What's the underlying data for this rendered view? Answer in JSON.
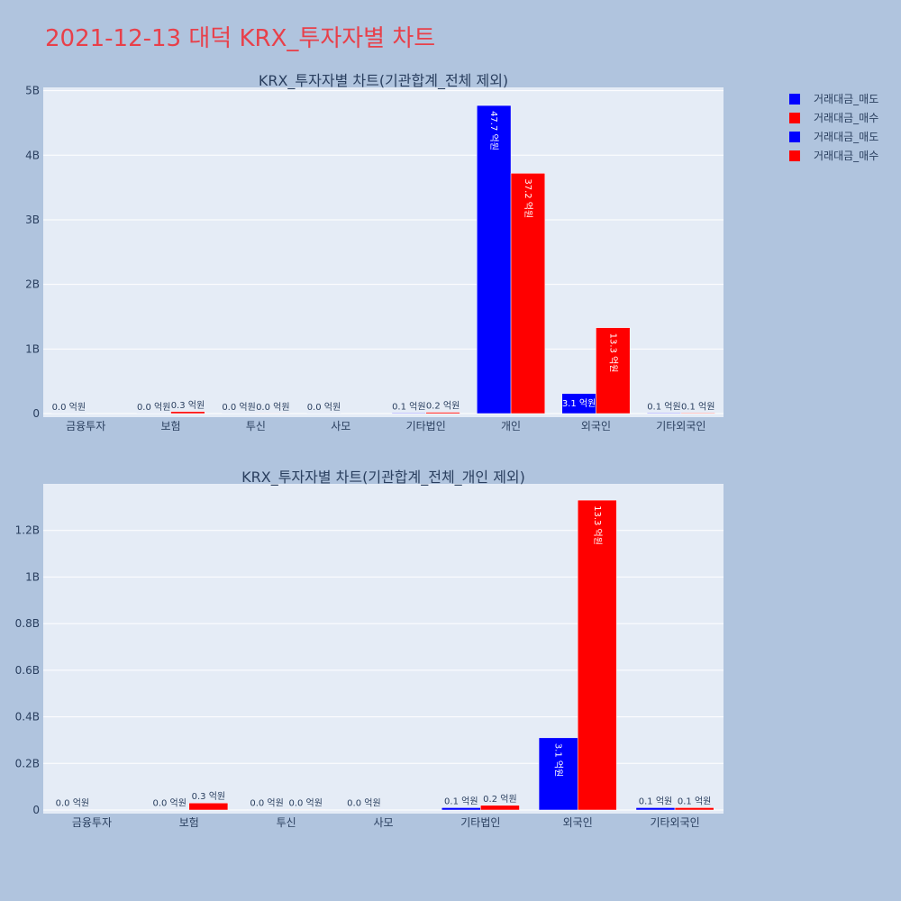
{
  "page": {
    "title": "2021-12-13 대덕 KRX_투자자별 차트"
  },
  "colors": {
    "sell": "#0000ff",
    "buy": "#ff0000",
    "title": "#e8404a",
    "background": "#b0c4de",
    "plot_background": "#e5ecf6"
  },
  "legend": {
    "placement": "top-right",
    "items": [
      {
        "name": "거래대금_매도",
        "color": "#0000ff"
      },
      {
        "name": "거래대금_매수",
        "color": "#ff0000"
      },
      {
        "name": "거래대금_매도",
        "color": "#0000ff"
      },
      {
        "name": "거래대금_매수",
        "color": "#ff0000"
      }
    ]
  },
  "chart_data": [
    {
      "type": "bar",
      "title": "KRX_투자자별 차트(기관합계_전체 제외)",
      "categories": [
        "금융투자",
        "보험",
        "투신",
        "사모",
        "기타법인",
        "개인",
        "외국인",
        "기타외국인"
      ],
      "ylim": [
        0,
        5050000000
      ],
      "yticks": [
        {
          "v": 0,
          "label": "0"
        },
        {
          "v": 1000000000,
          "label": "1B"
        },
        {
          "v": 2000000000,
          "label": "2B"
        },
        {
          "v": 3000000000,
          "label": "3B"
        },
        {
          "v": 4000000000,
          "label": "4B"
        },
        {
          "v": 5000000000,
          "label": "5B"
        }
      ],
      "grid": true,
      "series": [
        {
          "name": "거래대금_매도",
          "color": "#0000ff",
          "values": [
            2000000,
            2000000,
            2000000,
            2000000,
            10000000,
            4770000000,
            310000000,
            10000000
          ],
          "labels": [
            "0.0 억원",
            "0.0 억원",
            "0.0 억원",
            "0.0 억원",
            "0.1 억원",
            "47.7 억원",
            "3.1 억원",
            "0.1 억원"
          ]
        },
        {
          "name": "거래대금_매수",
          "color": "#ff0000",
          "values": [
            0,
            30000000,
            2000000,
            0,
            20000000,
            3720000000,
            1330000000,
            10000000
          ],
          "labels": [
            "",
            "0.3 억원",
            "0.0 억원",
            "",
            "0.2 억원",
            "37.2 억원",
            "13.3 억원",
            "0.1 억원"
          ]
        }
      ]
    },
    {
      "type": "bar",
      "title": "KRX_투자자별 차트(기관합계_전체_개인 제외)",
      "categories": [
        "금융투자",
        "보험",
        "투신",
        "사모",
        "기타법인",
        "외국인",
        "기타외국인"
      ],
      "ylim": [
        0,
        1400000000
      ],
      "yticks": [
        {
          "v": 0,
          "label": "0"
        },
        {
          "v": 200000000,
          "label": "0.2B"
        },
        {
          "v": 400000000,
          "label": "0.4B"
        },
        {
          "v": 600000000,
          "label": "0.6B"
        },
        {
          "v": 800000000,
          "label": "0.8B"
        },
        {
          "v": 1000000000,
          "label": "1B"
        },
        {
          "v": 1200000000,
          "label": "1.2B"
        }
      ],
      "grid": true,
      "series": [
        {
          "name": "거래대금_매도",
          "color": "#0000ff",
          "values": [
            2000000,
            2000000,
            2000000,
            2000000,
            10000000,
            310000000,
            10000000
          ],
          "labels": [
            "0.0 억원",
            "0.0 억원",
            "0.0 억원",
            "0.0 억원",
            "0.1 억원",
            "3.1 억원",
            "0.1 억원"
          ]
        },
        {
          "name": "거래대금_매수",
          "color": "#ff0000",
          "values": [
            0,
            30000000,
            2000000,
            0,
            20000000,
            1330000000,
            10000000
          ],
          "labels": [
            "",
            "0.3 억원",
            "0.0 억원",
            "",
            "0.2 억원",
            "13.3 억원",
            "0.1 억원"
          ]
        }
      ]
    }
  ]
}
